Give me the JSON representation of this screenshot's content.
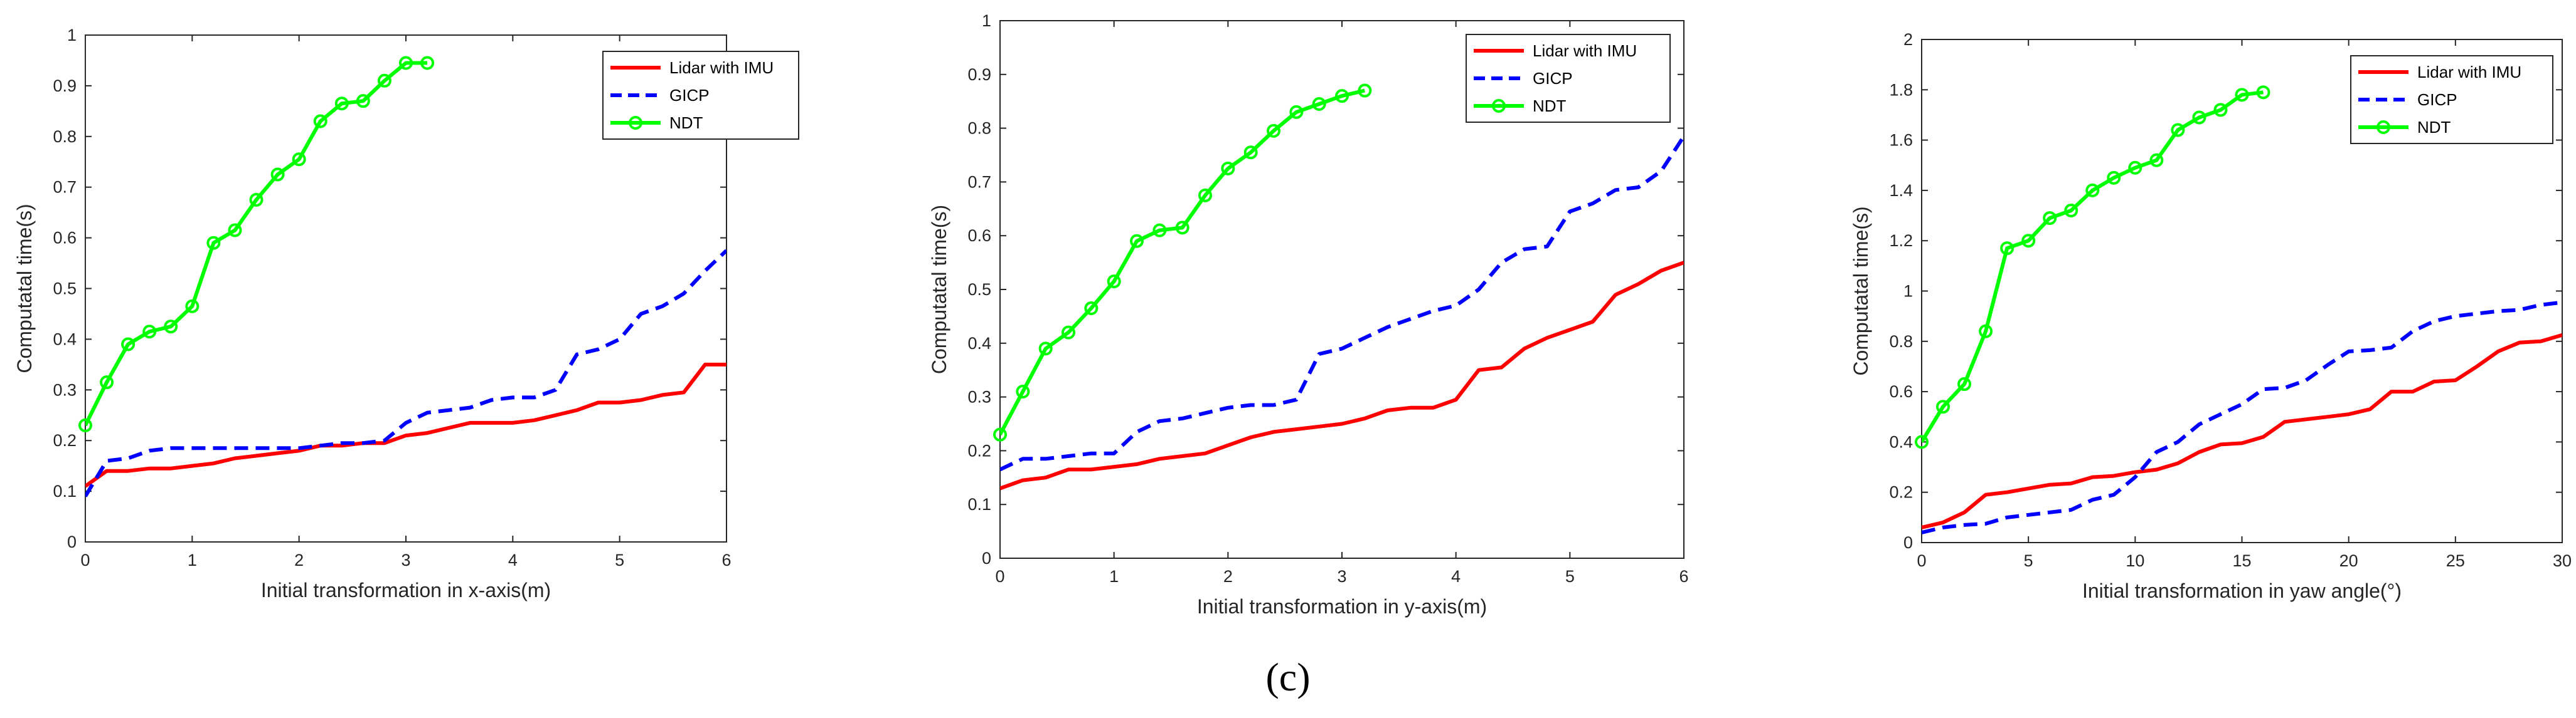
{
  "figure_caption": "(c)",
  "chart_data": [
    {
      "type": "line",
      "xlabel": "Initial transformation in x-axis(m)",
      "ylabel": "Computatal time(s)",
      "xlim": [
        0,
        6
      ],
      "ylim": [
        0,
        1
      ],
      "xticks": [
        0,
        1,
        2,
        3,
        4,
        5,
        6
      ],
      "yticks": [
        0,
        0.1,
        0.2,
        0.3,
        0.4,
        0.5,
        0.6,
        0.7,
        0.8,
        0.9,
        1
      ],
      "xtick_labels": [
        "0",
        "1",
        "2",
        "3",
        "4",
        "5",
        "6"
      ],
      "ytick_labels": [
        "0",
        "0.1",
        "0.2",
        "0.3",
        "0.4",
        "0.5",
        "0.6",
        "0.7",
        "0.8",
        "0.9",
        "1"
      ],
      "legend_position": "top-right",
      "series": [
        {
          "name": "Lidar with IMU",
          "color": "#ff0000",
          "style": "solid",
          "marker": "none",
          "x": [
            0,
            0.2,
            0.4,
            0.6,
            0.8,
            1.0,
            1.2,
            1.4,
            1.6,
            1.8,
            2.0,
            2.2,
            2.4,
            2.6,
            2.8,
            3.0,
            3.2,
            3.4,
            3.6,
            3.8,
            4.0,
            4.2,
            4.4,
            4.6,
            4.8,
            5.0,
            5.2,
            5.4,
            5.6,
            5.8,
            6.0
          ],
          "y": [
            0.11,
            0.14,
            0.14,
            0.145,
            0.145,
            0.15,
            0.155,
            0.165,
            0.17,
            0.175,
            0.18,
            0.19,
            0.19,
            0.195,
            0.195,
            0.21,
            0.215,
            0.225,
            0.235,
            0.235,
            0.235,
            0.24,
            0.25,
            0.26,
            0.275,
            0.275,
            0.28,
            0.29,
            0.295,
            0.35,
            0.35
          ]
        },
        {
          "name": "GICP",
          "color": "#0000ff",
          "style": "dashed",
          "marker": "none",
          "x": [
            0,
            0.2,
            0.4,
            0.6,
            0.8,
            1.0,
            1.2,
            1.4,
            1.6,
            1.8,
            2.0,
            2.2,
            2.4,
            2.6,
            2.8,
            3.0,
            3.2,
            3.4,
            3.6,
            3.8,
            4.0,
            4.2,
            4.4,
            4.6,
            4.8,
            5.0,
            5.2,
            5.4,
            5.6,
            5.8,
            6.0
          ],
          "y": [
            0.09,
            0.16,
            0.165,
            0.18,
            0.185,
            0.185,
            0.185,
            0.185,
            0.185,
            0.185,
            0.185,
            0.19,
            0.195,
            0.195,
            0.2,
            0.235,
            0.255,
            0.26,
            0.265,
            0.28,
            0.285,
            0.285,
            0.3,
            0.37,
            0.38,
            0.4,
            0.45,
            0.465,
            0.49,
            0.535,
            0.575
          ]
        },
        {
          "name": "NDT",
          "color": "#00ff00",
          "style": "solid",
          "marker": "circle",
          "x": [
            0,
            0.2,
            0.4,
            0.6,
            0.8,
            1.0,
            1.2,
            1.4,
            1.6,
            1.8,
            2.0,
            2.2,
            2.4,
            2.6,
            2.8,
            3.0,
            3.2
          ],
          "y": [
            0.23,
            0.315,
            0.39,
            0.415,
            0.425,
            0.465,
            0.59,
            0.615,
            0.675,
            0.725,
            0.755,
            0.83,
            0.865,
            0.87,
            0.91,
            0.945,
            0.945
          ]
        }
      ]
    },
    {
      "type": "line",
      "xlabel": "Initial transformation in y-axis(m)",
      "ylabel": "Computatal time(s)",
      "xlim": [
        0,
        6
      ],
      "ylim": [
        0,
        1
      ],
      "xticks": [
        0,
        1,
        2,
        3,
        4,
        5,
        6
      ],
      "yticks": [
        0,
        0.1,
        0.2,
        0.3,
        0.4,
        0.5,
        0.6,
        0.7,
        0.8,
        0.9,
        1
      ],
      "xtick_labels": [
        "0",
        "1",
        "2",
        "3",
        "4",
        "5",
        "6"
      ],
      "ytick_labels": [
        "0",
        "0.1",
        "0.2",
        "0.3",
        "0.4",
        "0.5",
        "0.6",
        "0.7",
        "0.8",
        "0.9",
        "1"
      ],
      "legend_position": "top-right",
      "series": [
        {
          "name": "Lidar with IMU",
          "color": "#ff0000",
          "style": "solid",
          "marker": "none",
          "x": [
            0,
            0.2,
            0.4,
            0.6,
            0.8,
            1.0,
            1.2,
            1.4,
            1.6,
            1.8,
            2.0,
            2.2,
            2.4,
            2.6,
            2.8,
            3.0,
            3.2,
            3.4,
            3.6,
            3.8,
            4.0,
            4.2,
            4.4,
            4.6,
            4.8,
            5.0,
            5.2,
            5.4,
            5.6,
            5.8,
            6.0
          ],
          "y": [
            0.13,
            0.145,
            0.15,
            0.165,
            0.165,
            0.17,
            0.175,
            0.185,
            0.19,
            0.195,
            0.21,
            0.225,
            0.235,
            0.24,
            0.245,
            0.25,
            0.26,
            0.275,
            0.28,
            0.28,
            0.295,
            0.35,
            0.355,
            0.39,
            0.41,
            0.425,
            0.44,
            0.49,
            0.51,
            0.535,
            0.55
          ]
        },
        {
          "name": "GICP",
          "color": "#0000ff",
          "style": "dashed",
          "marker": "none",
          "x": [
            0,
            0.2,
            0.4,
            0.6,
            0.8,
            1.0,
            1.2,
            1.4,
            1.6,
            1.8,
            2.0,
            2.2,
            2.4,
            2.6,
            2.8,
            3.0,
            3.2,
            3.4,
            3.6,
            3.8,
            4.0,
            4.2,
            4.4,
            4.6,
            4.8,
            5.0,
            5.2,
            5.4,
            5.6,
            5.8,
            6.0
          ],
          "y": [
            0.165,
            0.185,
            0.185,
            0.19,
            0.195,
            0.195,
            0.235,
            0.255,
            0.26,
            0.27,
            0.28,
            0.285,
            0.285,
            0.295,
            0.38,
            0.39,
            0.41,
            0.43,
            0.445,
            0.46,
            0.47,
            0.5,
            0.55,
            0.575,
            0.58,
            0.645,
            0.66,
            0.685,
            0.69,
            0.72,
            0.785
          ]
        },
        {
          "name": "NDT",
          "color": "#00ff00",
          "style": "solid",
          "marker": "circle",
          "x": [
            0,
            0.2,
            0.4,
            0.6,
            0.8,
            1.0,
            1.2,
            1.4,
            1.6,
            1.8,
            2.0,
            2.2,
            2.4,
            2.6,
            2.8,
            3.0,
            3.2
          ],
          "y": [
            0.23,
            0.31,
            0.39,
            0.42,
            0.465,
            0.515,
            0.59,
            0.61,
            0.615,
            0.675,
            0.725,
            0.755,
            0.795,
            0.83,
            0.845,
            0.86,
            0.87
          ]
        }
      ]
    },
    {
      "type": "line",
      "xlabel": "Initial transformation in yaw angle(°)",
      "ylabel": "Computatal time(s)",
      "xlim": [
        0,
        30
      ],
      "ylim": [
        0,
        2
      ],
      "xticks": [
        0,
        5,
        10,
        15,
        20,
        25,
        30
      ],
      "yticks": [
        0,
        0.2,
        0.4,
        0.6,
        0.8,
        1,
        1.2,
        1.4,
        1.6,
        1.8,
        2
      ],
      "xtick_labels": [
        "0",
        "5",
        "10",
        "15",
        "20",
        "25",
        "30"
      ],
      "ytick_labels": [
        "0",
        "0.2",
        "0.4",
        "0.6",
        "0.8",
        "1",
        "1.2",
        "1.4",
        "1.6",
        "1.8",
        "2"
      ],
      "legend_position": "top-right",
      "series": [
        {
          "name": "Lidar with IMU",
          "color": "#ff0000",
          "style": "solid",
          "marker": "none",
          "x": [
            0,
            1,
            2,
            3,
            4,
            5,
            6,
            7,
            8,
            9,
            10,
            11,
            12,
            13,
            14,
            15,
            16,
            17,
            18,
            19,
            20,
            21,
            22,
            23,
            24,
            25,
            26,
            27,
            28,
            29,
            30
          ],
          "y": [
            0.06,
            0.08,
            0.12,
            0.19,
            0.2,
            0.215,
            0.23,
            0.235,
            0.26,
            0.265,
            0.28,
            0.29,
            0.315,
            0.36,
            0.39,
            0.395,
            0.42,
            0.48,
            0.49,
            0.5,
            0.51,
            0.53,
            0.6,
            0.6,
            0.64,
            0.645,
            0.7,
            0.76,
            0.795,
            0.8,
            0.825
          ]
        },
        {
          "name": "GICP",
          "color": "#0000ff",
          "style": "dashed",
          "marker": "none",
          "x": [
            0,
            1,
            2,
            3,
            4,
            5,
            6,
            7,
            8,
            9,
            10,
            11,
            12,
            13,
            14,
            15,
            16,
            17,
            18,
            19,
            20,
            21,
            22,
            23,
            24,
            25,
            26,
            27,
            28,
            29,
            30
          ],
          "y": [
            0.04,
            0.06,
            0.07,
            0.075,
            0.1,
            0.11,
            0.12,
            0.13,
            0.17,
            0.19,
            0.26,
            0.36,
            0.4,
            0.47,
            0.51,
            0.55,
            0.61,
            0.615,
            0.645,
            0.705,
            0.76,
            0.765,
            0.775,
            0.84,
            0.88,
            0.9,
            0.91,
            0.92,
            0.925,
            0.945,
            0.955
          ]
        },
        {
          "name": "NDT",
          "color": "#00ff00",
          "style": "solid",
          "marker": "circle",
          "x": [
            0,
            1,
            2,
            3,
            4,
            5,
            6,
            7,
            8,
            9,
            10,
            11,
            12,
            13,
            14,
            15,
            16
          ],
          "y": [
            0.4,
            0.54,
            0.63,
            0.84,
            1.17,
            1.2,
            1.29,
            1.32,
            1.4,
            1.45,
            1.49,
            1.52,
            1.64,
            1.69,
            1.72,
            1.78,
            1.79
          ]
        }
      ]
    }
  ]
}
